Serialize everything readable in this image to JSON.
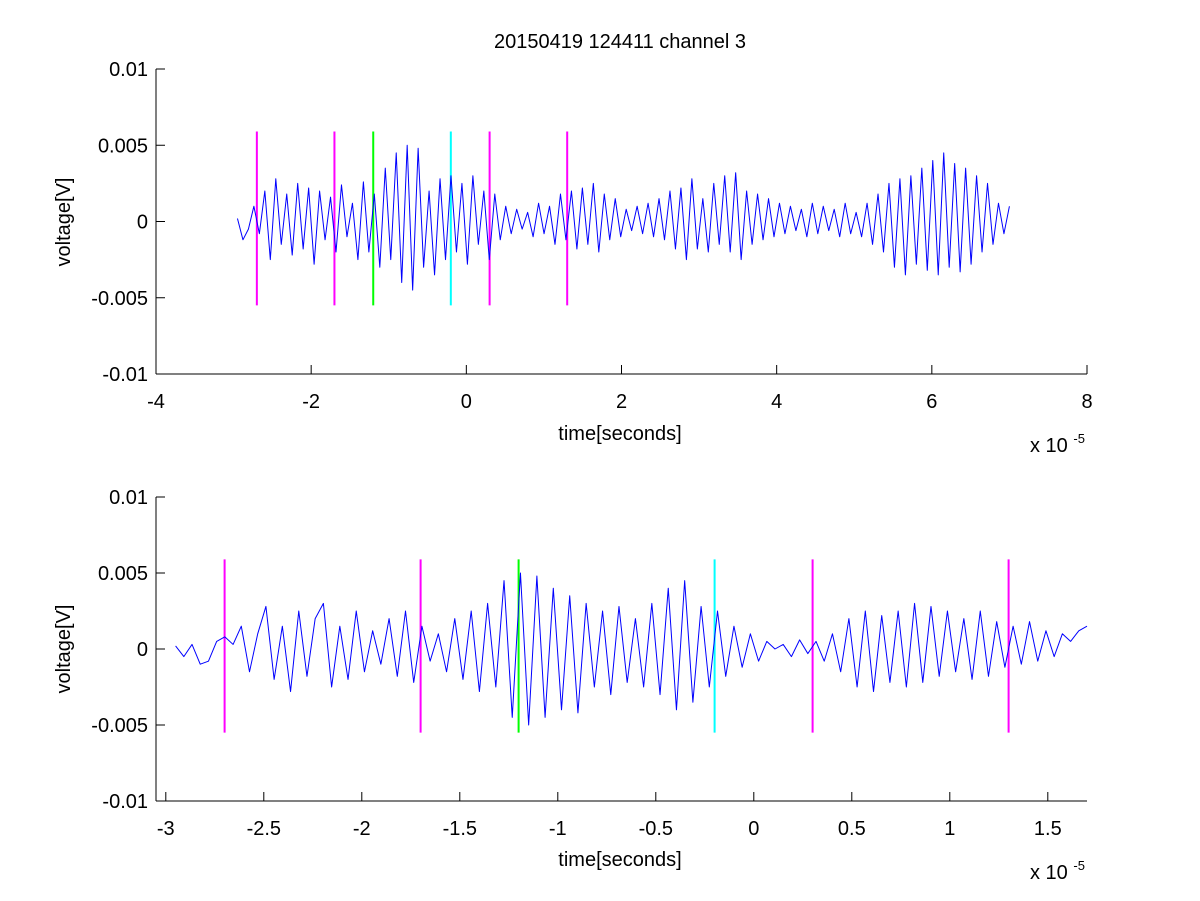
{
  "chart_data": [
    {
      "type": "line",
      "title": "20150419 124411 channel 3",
      "xlabel": "time[seconds]",
      "ylabel": "voltage[V]",
      "x_multiplier": "x 10",
      "x_exponent": "-5",
      "xlim": [
        -4,
        8
      ],
      "ylim": [
        -0.01,
        0.01
      ],
      "xticks": [
        -4,
        -2,
        0,
        2,
        4,
        6,
        8
      ],
      "xtick_labels": [
        "-4",
        "-2",
        "0",
        "2",
        "4",
        "6",
        "8"
      ],
      "yticks": [
        -0.01,
        -0.005,
        0,
        0.005,
        0.01
      ],
      "ytick_labels": [
        "-0.01",
        "-0.005",
        "0",
        "0.005",
        "0.01"
      ],
      "grid": false,
      "series": [
        {
          "color": "#0000ff",
          "x_range": [
            -2.95,
            7.0
          ],
          "y": [
            0.0002,
            -0.0012,
            -0.0005,
            0.001,
            -0.0008,
            0.002,
            -0.0025,
            0.0028,
            -0.0015,
            0.0018,
            -0.0022,
            0.0025,
            -0.0018,
            0.0022,
            -0.0028,
            0.002,
            -0.0012,
            0.0016,
            -0.002,
            0.0024,
            -0.001,
            0.0012,
            -0.0025,
            0.0026,
            -0.002,
            0.0018,
            -0.003,
            0.0035,
            -0.0025,
            0.0045,
            -0.004,
            0.005,
            -0.0045,
            0.0048,
            -0.003,
            0.002,
            -0.0035,
            0.0028,
            -0.0025,
            0.003,
            -0.002,
            0.0025,
            -0.0028,
            0.003,
            -0.0015,
            0.002,
            -0.0025,
            0.0018,
            -0.0012,
            0.001,
            -0.0008,
            0.0008,
            -0.0005,
            0.0006,
            -0.001,
            0.0012,
            -0.0008,
            0.001,
            -0.0015,
            0.0018,
            -0.0012,
            0.002,
            -0.0018,
            0.0022,
            -0.0015,
            0.0025,
            -0.002,
            0.0018,
            -0.0012,
            0.0015,
            -0.001,
            0.0008,
            -0.0006,
            0.001,
            -0.0008,
            0.0012,
            -0.001,
            0.0015,
            -0.0012,
            0.002,
            -0.0018,
            0.0022,
            -0.0025,
            0.0028,
            -0.0018,
            0.0015,
            -0.002,
            0.0025,
            -0.0015,
            0.003,
            -0.002,
            0.0032,
            -0.0025,
            0.002,
            -0.0015,
            0.0018,
            -0.0012,
            0.0015,
            -0.001,
            0.0012,
            -0.0008,
            0.001,
            -0.0006,
            0.0008,
            -0.001,
            0.0012,
            -0.0008,
            0.001,
            -0.0006,
            0.0008,
            -0.001,
            0.0012,
            -0.0008,
            0.0006,
            -0.001,
            0.0012,
            -0.0015,
            0.0018,
            -0.002,
            0.0025,
            -0.003,
            0.0028,
            -0.0035,
            0.003,
            -0.0028,
            0.0035,
            -0.0032,
            0.004,
            -0.0035,
            0.0045,
            -0.003,
            0.0038,
            -0.0033,
            0.0035,
            -0.0028,
            0.003,
            -0.002,
            0.0025,
            -0.0015,
            0.0012,
            -0.0008,
            0.001
          ]
        }
      ],
      "vlines": [
        {
          "x": -2.7,
          "color": "#ff00ff",
          "y_range": [
            -0.0055,
            0.0059
          ]
        },
        {
          "x": -1.7,
          "color": "#ff00ff",
          "y_range": [
            -0.0055,
            0.0059
          ]
        },
        {
          "x": -1.2,
          "color": "#00ff00",
          "y_range": [
            -0.0055,
            0.0059
          ]
        },
        {
          "x": -0.2,
          "color": "#00ffff",
          "y_range": [
            -0.0055,
            0.0059
          ]
        },
        {
          "x": 0.3,
          "color": "#ff00ff",
          "y_range": [
            -0.0055,
            0.0059
          ]
        },
        {
          "x": 1.3,
          "color": "#ff00ff",
          "y_range": [
            -0.0055,
            0.0059
          ]
        }
      ]
    },
    {
      "type": "line",
      "title": "",
      "xlabel": "time[seconds]",
      "ylabel": "voltage[V]",
      "x_multiplier": "x 10",
      "x_exponent": "-5",
      "xlim": [
        -3.05,
        1.7
      ],
      "ylim": [
        -0.01,
        0.01
      ],
      "xticks": [
        -3,
        -2.5,
        -2,
        -1.5,
        -1,
        -0.5,
        0,
        0.5,
        1,
        1.5
      ],
      "xtick_labels": [
        "-3",
        "-2.5",
        "-2",
        "-1.5",
        "-1",
        "-0.5",
        "0",
        "0.5",
        "1",
        "1.5"
      ],
      "yticks": [
        -0.01,
        -0.005,
        0,
        0.005,
        0.01
      ],
      "ytick_labels": [
        "-0.01",
        "-0.005",
        "0",
        "0.005",
        "0.01"
      ],
      "grid": false,
      "series": [
        {
          "color": "#0000ff",
          "x_range": [
            -2.95,
            1.7
          ],
          "y": [
            0.0002,
            -0.0005,
            0.0003,
            -0.001,
            -0.0008,
            0.0005,
            0.0008,
            0.0003,
            0.0015,
            -0.0015,
            0.001,
            0.0028,
            -0.002,
            0.0015,
            -0.0028,
            0.0025,
            -0.0018,
            0.002,
            0.003,
            -0.0025,
            0.0015,
            -0.002,
            0.0025,
            -0.0015,
            0.0012,
            -0.001,
            0.002,
            -0.0018,
            0.0025,
            -0.0022,
            0.0015,
            -0.0008,
            0.001,
            -0.0015,
            0.002,
            -0.002,
            0.0025,
            -0.0028,
            0.003,
            -0.0025,
            0.0045,
            -0.0045,
            0.005,
            -0.005,
            0.0048,
            -0.0045,
            0.004,
            -0.004,
            0.0035,
            -0.0042,
            0.003,
            -0.0025,
            0.0025,
            -0.003,
            0.0028,
            -0.0022,
            0.002,
            -0.0025,
            0.003,
            -0.003,
            0.004,
            -0.004,
            0.0045,
            -0.0035,
            0.0028,
            -0.0025,
            0.0025,
            -0.0018,
            0.0015,
            -0.0012,
            0.001,
            -0.0008,
            0.0005,
            0.0,
            0.0003,
            -0.0005,
            0.0006,
            -0.0003,
            0.0005,
            -0.0008,
            0.001,
            -0.0015,
            0.002,
            -0.0025,
            0.0025,
            -0.0028,
            0.0022,
            -0.0022,
            0.0025,
            -0.0025,
            0.003,
            -0.0022,
            0.0028,
            -0.0018,
            0.0025,
            -0.0015,
            0.002,
            -0.002,
            0.0025,
            -0.0018,
            0.0018,
            -0.0012,
            0.0015,
            -0.001,
            0.0018,
            -0.0008,
            0.0012,
            -0.0005,
            0.001,
            0.0005,
            0.0012,
            0.0015
          ]
        }
      ],
      "vlines": [
        {
          "x": -2.7,
          "color": "#ff00ff",
          "y_range": [
            -0.0055,
            0.0059
          ]
        },
        {
          "x": -1.7,
          "color": "#ff00ff",
          "y_range": [
            -0.0055,
            0.0059
          ]
        },
        {
          "x": -1.2,
          "color": "#00ff00",
          "y_range": [
            -0.0055,
            0.0059
          ]
        },
        {
          "x": -0.2,
          "color": "#00ffff",
          "y_range": [
            -0.0055,
            0.0059
          ]
        },
        {
          "x": 0.3,
          "color": "#ff00ff",
          "y_range": [
            -0.0055,
            0.0059
          ]
        },
        {
          "x": 1.3,
          "color": "#ff00ff",
          "y_range": [
            -0.0055,
            0.0059
          ]
        }
      ]
    }
  ]
}
